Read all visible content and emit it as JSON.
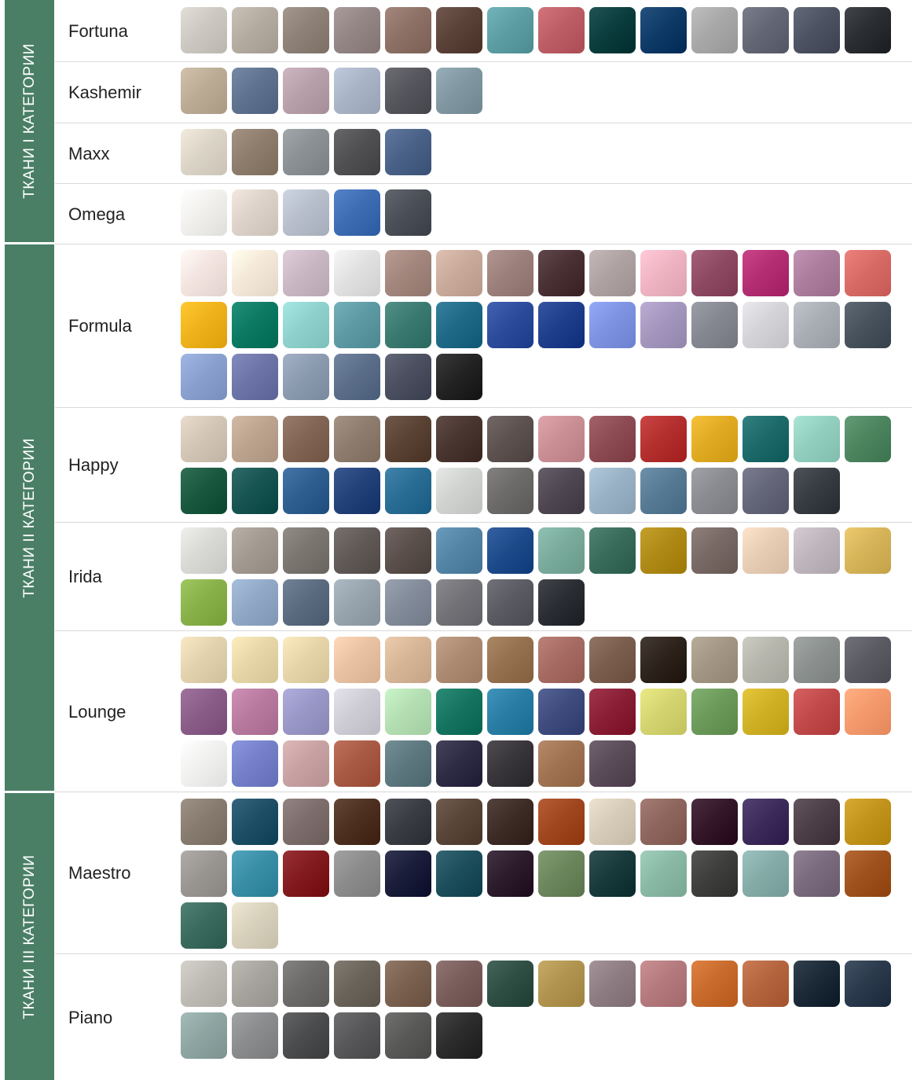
{
  "categories": [
    {
      "label": "ТКАНИ  I  КАТЕГОРИИ",
      "fabrics": [
        {
          "name": "Fortuna",
          "swatches": [
            "#cdc8c1",
            "#b4aca1",
            "#8e8278",
            "#948685",
            "#8e7166",
            "#5b4239",
            "#5c9ea3",
            "#bd5d65",
            "#0b3e3e",
            "#0f3b68",
            "#a8a8a8",
            "#646876",
            "#4d5363",
            "#2b2e33"
          ]
        },
        {
          "name": "Kashemir",
          "swatches": [
            "#bcac96",
            "#5f7390",
            "#b8a0ab",
            "#a9b4c6",
            "#56565d",
            "#8198a2"
          ]
        },
        {
          "name": "Maxx",
          "swatches": [
            "#dcd5c7",
            "#8e7d6c",
            "#8b9194",
            "#515154",
            "#4a6288"
          ]
        },
        {
          "name": "Omega",
          "swatches": [
            "#f1f0ed",
            "#ddd2c9",
            "#b8bfcc",
            "#3e6db4",
            "#4b5058"
          ]
        }
      ]
    },
    {
      "label": "ТКАНИ  II  КАТЕГОРИИ",
      "fabrics": [
        {
          "name": "Formula",
          "swatches": [
            "#f3e4e0",
            "#f4e8d8",
            "#c9b8c4",
            "#e1e1e2",
            "#a3877e",
            "#c9aa9b",
            "#9c807b",
            "#4a3134",
            "#aea2a3",
            "#efb4c3",
            "#8e4a63",
            "#b42e74",
            "#ad7d9d",
            "#d86b66",
            "#efb21c",
            "#0c7a63",
            "#8fd1cc",
            "#5e9aa3",
            "#3b7a71",
            "#206a88",
            "#2d4c9b",
            "#1f3f8c",
            "#7e93e1",
            "#a497be",
            "#858791",
            "#d4d4d8",
            "#a9aeb5",
            "#48535e",
            "#8aa1cf",
            "#6c74a8",
            "#8c9bb0",
            "#5b6e8a",
            "#4b5060",
            "#242424"
          ]
        },
        {
          "name": "Happy",
          "swatches": [
            "#d3c6b6",
            "#bca48f",
            "#826555",
            "#8e7d6e",
            "#5a4334",
            "#4a3630",
            "#5d5250",
            "#c98f95",
            "#8d4b53",
            "#b4302f",
            "#e0ab23",
            "#1d6a6a",
            "#93cfbe",
            "#4d8560",
            "#1a5940",
            "#185552",
            "#2f5f91",
            "#24427a",
            "#2a6d95",
            "#d0d3d0",
            "#6d6b6a",
            "#4f4853",
            "#9ab2c5",
            "#577b95",
            "#8a8c92",
            "#65667a",
            "#383d43"
          ]
        },
        {
          "name": "Irida",
          "swatches": [
            "#d9d9d6",
            "#a39a91",
            "#7b7670",
            "#625a57",
            "#5b504b",
            "#5585a6",
            "#1e4b8b",
            "#7aab9c",
            "#3a6c5b",
            "#b08a16",
            "#786965",
            "#e8cdb5",
            "#beb6bc",
            "#d6b459",
            "#89b14a",
            "#91a8c7",
            "#5b6b80",
            "#97a4ad",
            "#838c9a",
            "#737378",
            "#5b5c63",
            "#2b2f34"
          ]
        },
        {
          "name": "Lounge",
          "swatches": [
            "#e2d3ae",
            "#e7d7a8",
            "#e6d5a9",
            "#e8c2a2",
            "#d7b597",
            "#ad8b73",
            "#95714f",
            "#a66b62",
            "#7b5e4e",
            "#2e241d",
            "#a39684",
            "#b6b6ad",
            "#8c9190",
            "#5b5c63",
            "#8a5d88",
            "#b87a9f",
            "#9a98c7",
            "#ceccd5",
            "#b4dfb3",
            "#167560",
            "#2a7ea5",
            "#3f4c7e",
            "#8a1f35",
            "#d4d470",
            "#6c9a5b",
            "#d0b125",
            "#c14a4a",
            "#f49a6d",
            "#f1f1f0",
            "#7580c9",
            "#c8a2a3",
            "#a85a44",
            "#5e7880",
            "#2f2d45",
            "#39363b",
            "#a07453",
            "#5b4c59"
          ]
        }
      ]
    },
    {
      "label": "ТКАНИ  III  КАТЕГОРИИ",
      "fabrics": [
        {
          "name": "Maestro",
          "swatches": [
            "#877c6f",
            "#1e4f66",
            "#7d6e6c",
            "#4e3020",
            "#3a3d43",
            "#5a4639",
            "#3e2c27",
            "#a04720",
            "#d7ccb9",
            "#8e665e",
            "#34182a",
            "#3d2b5c",
            "#4d3f47",
            "#c2941c",
            "#9a9692",
            "#3a8fa6",
            "#821b1f",
            "#8c8c8c",
            "#1a1e3a",
            "#1e4f5c",
            "#2c1c2c",
            "#6c865d",
            "#1a3b3b",
            "#8ab9a6",
            "#3f403e",
            "#85aca8",
            "#7a6c7e",
            "#a0521e",
            "#3b6b5e",
            "#d8d1bc"
          ]
        },
        {
          "name": "Piano",
          "swatches": [
            "#bfbcb5",
            "#a7a39e",
            "#6e6c6a",
            "#6b645a",
            "#7b6250",
            "#7a5e5c",
            "#2f4f44",
            "#b0944f",
            "#8e7d82",
            "#b47a7e",
            "#c86b2d",
            "#b5653e",
            "#1c2a38",
            "#2b3a4c",
            "#8ea5a2",
            "#8a8c8e",
            "#4c4d4e",
            "#58585a",
            "#5a5a58",
            "#2c2d2c"
          ]
        }
      ]
    }
  ]
}
